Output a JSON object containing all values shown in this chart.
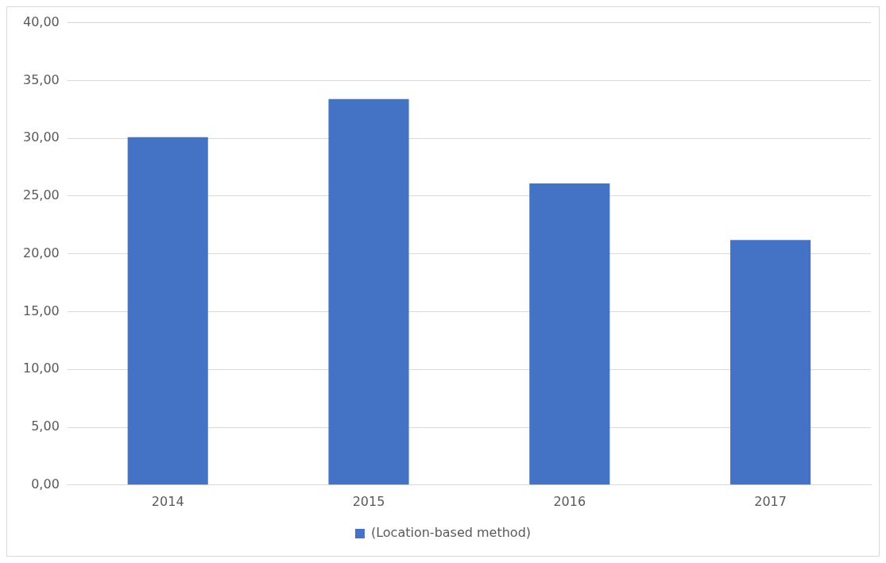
{
  "chart_data": {
    "type": "bar",
    "categories": [
      "2014",
      "2015",
      "2016",
      "2017"
    ],
    "series": [
      {
        "name": "(Location-based method)",
        "color": "#4472c4",
        "values": [
          30.1,
          33.4,
          26.1,
          21.2
        ]
      }
    ],
    "ylim": [
      0,
      40
    ],
    "yticks": [
      {
        "value": 0,
        "label": "0,00"
      },
      {
        "value": 5,
        "label": "5,00"
      },
      {
        "value": 10,
        "label": "10,00"
      },
      {
        "value": 15,
        "label": "15,00"
      },
      {
        "value": 20,
        "label": "20,00"
      },
      {
        "value": 25,
        "label": "25,00"
      },
      {
        "value": 30,
        "label": "30,00"
      },
      {
        "value": 35,
        "label": "35,00"
      },
      {
        "value": 40,
        "label": "40,00"
      }
    ],
    "grid": "y",
    "legend": "bottom"
  }
}
